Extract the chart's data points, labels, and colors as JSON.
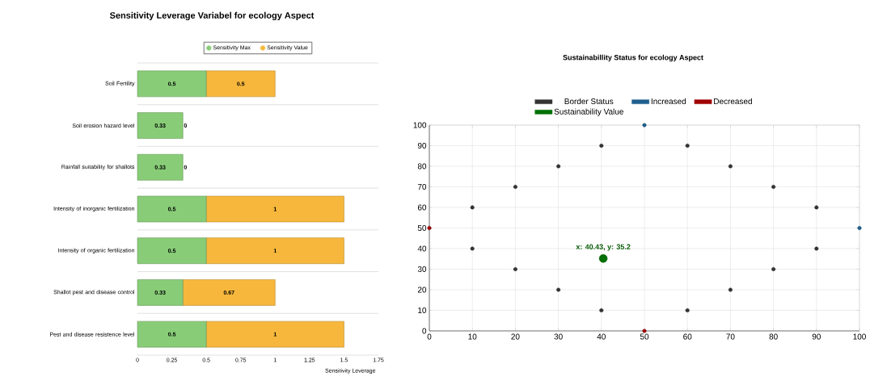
{
  "chart_data": [
    {
      "type": "bar",
      "orientation": "horizontal",
      "stacked": true,
      "title": "Sensitivity Leverage Variabel for ecology Aspect",
      "xlabel": "Sensitivity Leverage",
      "categories": [
        "Soil Fertility",
        "Soil erosion hazard level",
        "Rainfall suitability for shallots",
        "Intensity of inorganic fertilization",
        "Intensity of organic fertilization",
        "Shallot pest and disease control",
        "Pest and disease resistence level"
      ],
      "series": [
        {
          "name": "Sensitivity Max",
          "color": "#88cc77",
          "values": [
            0.5,
            0.33,
            0.33,
            0.5,
            0.5,
            0.33,
            0.5
          ]
        },
        {
          "name": "Sensitivity Value",
          "color": "#f6b73c",
          "values": [
            0.5,
            0,
            0,
            1,
            1,
            0.67,
            1
          ]
        }
      ],
      "xlim": [
        0,
        1.75
      ],
      "xticks": [
        0,
        0.25,
        0.5,
        0.75,
        1,
        1.25,
        1.5,
        1.75
      ],
      "data_labels": true,
      "legend": "top",
      "grid": "y"
    },
    {
      "type": "scatter",
      "title": "Sustainabillity Status for ecology Aspect",
      "marker": "circle",
      "series": [
        {
          "name": "Border Status",
          "color": "#333333",
          "x": [
            10,
            20,
            30,
            40,
            60,
            70,
            80,
            90,
            10,
            20,
            30,
            40,
            60,
            70,
            80,
            90
          ],
          "values": [
            60,
            70,
            80,
            90,
            90,
            80,
            70,
            60,
            40,
            30,
            20,
            10,
            10,
            20,
            30,
            40
          ]
        },
        {
          "name": "Increased",
          "color": "#1f5f8f",
          "x": [
            50,
            100
          ],
          "values": [
            100,
            50
          ]
        },
        {
          "name": "Decreased",
          "color": "#a00000",
          "x": [
            0,
            50
          ],
          "values": [
            50,
            0
          ]
        },
        {
          "name": "Sustainability Value",
          "color": "#007000",
          "x": [
            40.43
          ],
          "values": [
            35.2
          ]
        }
      ],
      "annotations": [
        {
          "text": "x: 40.43, y: 35.2",
          "x": 40.43,
          "y": 35.2
        }
      ],
      "xlim": [
        0,
        100
      ],
      "ylim": [
        0,
        100
      ],
      "xticks": [
        0,
        10,
        20,
        30,
        40,
        50,
        60,
        70,
        80,
        90,
        100
      ],
      "yticks": [
        0,
        10,
        20,
        30,
        40,
        50,
        60,
        70,
        80,
        90,
        100
      ],
      "grid": true,
      "legend": "top"
    }
  ]
}
